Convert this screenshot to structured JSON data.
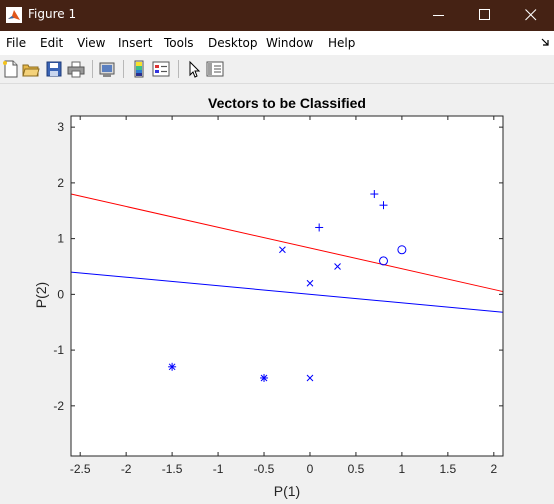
{
  "window": {
    "title": "Figure 1",
    "controls": [
      "minimize",
      "maximize",
      "close"
    ]
  },
  "menu": [
    "File",
    "Edit",
    "View",
    "Insert",
    "Tools",
    "Desktop",
    "Window",
    "Help"
  ],
  "toolbar": {
    "tools": [
      "new-figure-icon",
      "open-file-icon",
      "save-icon",
      "print-icon",
      "print-preview-icon",
      "colorbar-icon",
      "legend-icon",
      "pointer-icon",
      "property-inspector-icon"
    ]
  },
  "colors": {
    "titlebar": "#452214",
    "decision_line_1": "#ff0000",
    "decision_line_2": "#0000ff",
    "markers": "#0000ff"
  },
  "chart_data": {
    "type": "scatter",
    "title": "Vectors to be Classified",
    "xlabel": "P(1)",
    "ylabel": "P(2)",
    "xlim": [
      -2.6,
      2.1
    ],
    "ylim": [
      -2.9,
      3.2
    ],
    "xticks": [
      -2.5,
      -2,
      -1.5,
      -1,
      -0.5,
      0,
      0.5,
      1,
      1.5,
      2
    ],
    "xtick_labels": [
      "-2.5",
      "-2",
      "-1.5",
      "-1",
      "-0.5",
      "0",
      "0.5",
      "1",
      "1.5",
      "2"
    ],
    "yticks": [
      -2,
      -1,
      0,
      1,
      2,
      3
    ],
    "ytick_labels": [
      "-2",
      "-1",
      "0",
      "1",
      "2",
      "3"
    ],
    "grid": false,
    "series": [
      {
        "marker": "plus",
        "color": "#0000ff",
        "points": [
          [
            0.1,
            1.2
          ],
          [
            0.7,
            1.8
          ],
          [
            0.8,
            1.6
          ]
        ]
      },
      {
        "marker": "circle",
        "color": "#0000ff",
        "points": [
          [
            0.8,
            0.6
          ],
          [
            1.0,
            0.8
          ]
        ]
      },
      {
        "marker": "x",
        "color": "#0000ff",
        "points": [
          [
            -0.3,
            0.8
          ],
          [
            0.0,
            0.2
          ],
          [
            0.3,
            0.5
          ],
          [
            0.0,
            -1.5
          ]
        ]
      },
      {
        "marker": "asterisk",
        "color": "#0000ff",
        "points": [
          [
            -1.5,
            -1.3
          ],
          [
            -0.5,
            -1.5
          ]
        ]
      }
    ],
    "lines": [
      {
        "color": "#ff0000",
        "points": [
          [
            -2.6,
            1.8
          ],
          [
            2.1,
            0.05
          ]
        ]
      },
      {
        "color": "#0000ff",
        "points": [
          [
            -2.6,
            0.4
          ],
          [
            2.1,
            -0.32
          ]
        ]
      }
    ]
  }
}
